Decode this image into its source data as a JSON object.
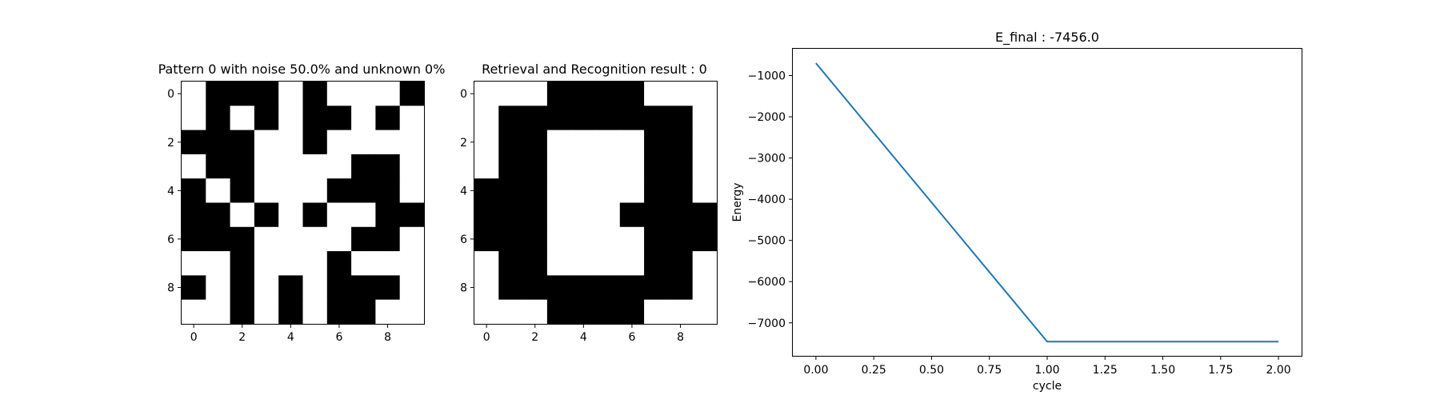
{
  "chart_data": [
    {
      "type": "heatmap",
      "title": "Pattern 0 with noise 50.0% and unknown 0%",
      "xlabel": "",
      "ylabel": "",
      "x_ticks": [
        "0",
        "2",
        "4",
        "6",
        "8"
      ],
      "y_ticks": [
        "0",
        "2",
        "4",
        "6",
        "8"
      ],
      "colormap": {
        "1": "#000000",
        "0": "#ffffff"
      },
      "grid": false,
      "matrix": [
        [
          0,
          1,
          1,
          1,
          0,
          1,
          0,
          0,
          0,
          1
        ],
        [
          0,
          1,
          0,
          1,
          0,
          1,
          1,
          0,
          1,
          0
        ],
        [
          1,
          1,
          1,
          0,
          0,
          1,
          0,
          0,
          0,
          0
        ],
        [
          0,
          1,
          1,
          0,
          0,
          0,
          0,
          1,
          1,
          0
        ],
        [
          1,
          0,
          1,
          0,
          0,
          0,
          1,
          1,
          1,
          0
        ],
        [
          1,
          1,
          0,
          1,
          0,
          1,
          0,
          0,
          1,
          1
        ],
        [
          1,
          1,
          1,
          0,
          0,
          0,
          0,
          1,
          1,
          0
        ],
        [
          0,
          0,
          1,
          0,
          0,
          0,
          1,
          0,
          0,
          0
        ],
        [
          1,
          0,
          1,
          0,
          1,
          0,
          1,
          1,
          1,
          0
        ],
        [
          0,
          0,
          1,
          0,
          1,
          0,
          1,
          1,
          0,
          0
        ]
      ]
    },
    {
      "type": "heatmap",
      "title": "Retrieval and Recognition result : 0",
      "xlabel": "",
      "ylabel": "",
      "x_ticks": [
        "0",
        "2",
        "4",
        "6",
        "8"
      ],
      "y_ticks": [
        "0",
        "2",
        "4",
        "6",
        "8"
      ],
      "colormap": {
        "1": "#000000",
        "0": "#ffffff"
      },
      "grid": false,
      "matrix": [
        [
          0,
          0,
          0,
          1,
          1,
          1,
          1,
          0,
          0,
          0
        ],
        [
          0,
          1,
          1,
          1,
          1,
          1,
          1,
          1,
          1,
          0
        ],
        [
          0,
          1,
          1,
          0,
          0,
          0,
          0,
          1,
          1,
          0
        ],
        [
          0,
          1,
          1,
          0,
          0,
          0,
          0,
          1,
          1,
          0
        ],
        [
          1,
          1,
          1,
          0,
          0,
          0,
          0,
          1,
          1,
          0
        ],
        [
          1,
          1,
          1,
          0,
          0,
          0,
          1,
          1,
          1,
          1
        ],
        [
          1,
          1,
          1,
          0,
          0,
          0,
          0,
          1,
          1,
          1
        ],
        [
          0,
          1,
          1,
          0,
          0,
          0,
          0,
          1,
          1,
          0
        ],
        [
          0,
          1,
          1,
          1,
          1,
          1,
          1,
          1,
          1,
          0
        ],
        [
          0,
          0,
          0,
          1,
          1,
          1,
          1,
          0,
          0,
          0
        ]
      ]
    },
    {
      "type": "line",
      "title": "E_final : -7456.0",
      "xlabel": "cycle",
      "ylabel": "Energy",
      "xlim": [
        -0.1,
        2.1
      ],
      "ylim": [
        -7800,
        -350
      ],
      "x_ticks": [
        "0.00",
        "0.25",
        "0.50",
        "0.75",
        "1.00",
        "1.25",
        "1.50",
        "1.75",
        "2.00"
      ],
      "y_ticks": [
        "−1000",
        "−2000",
        "−3000",
        "−4000",
        "−5000",
        "−6000",
        "−7000"
      ],
      "grid": false,
      "line_color": "#1f77b4",
      "series": [
        {
          "x": [
            0,
            1,
            2
          ],
          "values": [
            -700,
            -7456,
            -7456
          ]
        }
      ]
    }
  ]
}
